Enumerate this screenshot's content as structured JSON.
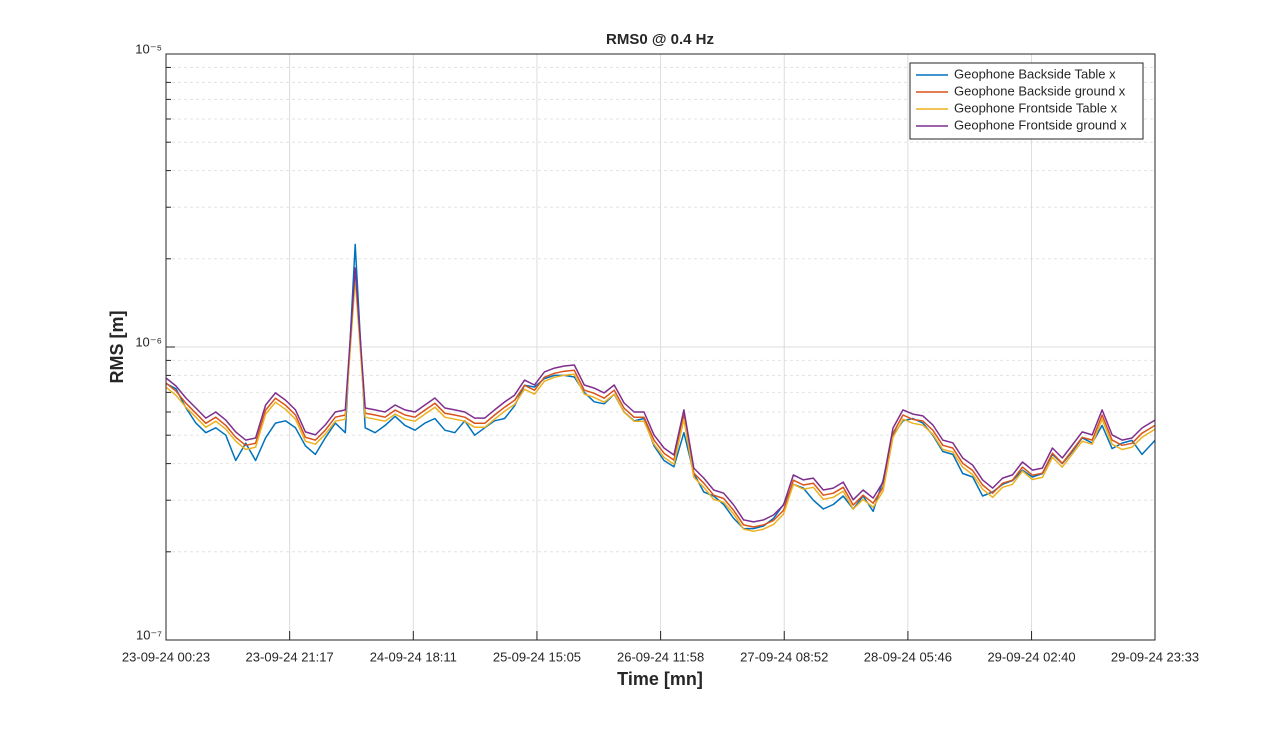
{
  "chart_data": {
    "type": "line",
    "title": "RMS0 @ 0.4 Hz",
    "xlabel": "Time [mn]",
    "ylabel": "RMS [m]",
    "log_y": true,
    "grid": true,
    "minor_grid": true,
    "legend_position": "upper right",
    "xlim": [
      0,
      10030
    ],
    "ylim": [
      1e-07,
      1e-05
    ],
    "xticks": [
      {
        "value": 0,
        "label": "23-09-24 00:23"
      },
      {
        "value": 1254,
        "label": "23-09-24 21:17"
      },
      {
        "value": 2508,
        "label": "24-09-24 18:11"
      },
      {
        "value": 3762,
        "label": "25-09-24 15:05"
      },
      {
        "value": 5016,
        "label": "26-09-24 11:58"
      },
      {
        "value": 6270,
        "label": "27-09-24 08:52"
      },
      {
        "value": 7524,
        "label": "28-09-24 05:46"
      },
      {
        "value": 8778,
        "label": "29-09-24 02:40"
      },
      {
        "value": 10030,
        "label": "29-09-24 23:33"
      }
    ],
    "yticks": [
      {
        "value": 1e-07,
        "label": "10⁻⁷"
      },
      {
        "value": 1e-06,
        "label": "10⁻⁶"
      },
      {
        "value": 1e-05,
        "label": "10⁻⁵"
      }
    ],
    "minor_yticks": [
      2e-07,
      3e-07,
      4e-07,
      5e-07,
      6e-07,
      7e-07,
      8e-07,
      9e-07,
      2e-06,
      3e-06,
      4e-06,
      5e-06,
      6e-06,
      7e-06,
      8e-06,
      9e-06
    ],
    "x": [
      0,
      101,
      202,
      303,
      404,
      505,
      606,
      707,
      808,
      909,
      1010,
      1111,
      1212,
      1313,
      1414,
      1515,
      1616,
      1717,
      1818,
      1919,
      2020,
      2121,
      2222,
      2323,
      2424,
      2525,
      2626,
      2727,
      2828,
      2929,
      3030,
      3131,
      3232,
      3333,
      3434,
      3535,
      3636,
      3737,
      3838,
      3939,
      4040,
      4141,
      4242,
      4343,
      4444,
      4545,
      4646,
      4747,
      4848,
      4949,
      5050,
      5151,
      5252,
      5353,
      5454,
      5555,
      5656,
      5757,
      5858,
      5959,
      6060,
      6161,
      6262,
      6363,
      6464,
      6565,
      6666,
      6767,
      6868,
      6969,
      7070,
      7171,
      7272,
      7373,
      7474,
      7575,
      7676,
      7777,
      7878,
      7979,
      8080,
      8181,
      8282,
      8383,
      8484,
      8585,
      8686,
      8787,
      8888,
      8989,
      9090,
      9191,
      9292,
      9393,
      9494,
      9595,
      9696,
      9797,
      9898,
      10030
    ],
    "series": [
      {
        "name": "Geophone Backside Table x",
        "color": "#0072BD",
        "values": [
          7.5e-07,
          7.2e-07,
          6.2e-07,
          5.5e-07,
          5.1e-07,
          5.3e-07,
          5e-07,
          4.1e-07,
          4.7e-07,
          4.1e-07,
          4.9e-07,
          5.5e-07,
          5.6e-07,
          5.3e-07,
          4.6e-07,
          4.3e-07,
          4.9e-07,
          5.5e-07,
          5.1e-07,
          2.24e-06,
          5.3e-07,
          5.1e-07,
          5.4e-07,
          5.8e-07,
          5.4e-07,
          5.2e-07,
          5.5e-07,
          5.7e-07,
          5.2e-07,
          5.1e-07,
          5.6e-07,
          5e-07,
          5.3e-07,
          5.6e-07,
          5.7e-07,
          6.3e-07,
          7.4e-07,
          7.3e-07,
          7.8e-07,
          8e-07,
          8e-07,
          7.9e-07,
          7e-07,
          6.5e-07,
          6.4e-07,
          6.9e-07,
          6e-07,
          5.6e-07,
          5.7e-07,
          4.6e-07,
          4.1e-07,
          3.9e-07,
          5.1e-07,
          3.7e-07,
          3.2e-07,
          3.1e-07,
          2.9e-07,
          2.6e-07,
          2.4e-07,
          2.4e-07,
          2.45e-07,
          2.6e-07,
          2.9e-07,
          3.4e-07,
          3.3e-07,
          3e-07,
          2.8e-07,
          2.9e-07,
          3.1e-07,
          2.8e-07,
          3.1e-07,
          2.75e-07,
          3.5e-07,
          5e-07,
          5.6e-07,
          5.7e-07,
          5.5e-07,
          5e-07,
          4.4e-07,
          4.3e-07,
          3.7e-07,
          3.6e-07,
          3.1e-07,
          3.2e-07,
          3.4e-07,
          3.5e-07,
          3.8e-07,
          3.6e-07,
          3.7e-07,
          4.3e-07,
          4e-07,
          4.4e-07,
          4.9e-07,
          4.7e-07,
          5.4e-07,
          4.5e-07,
          4.7e-07,
          4.8e-07,
          4.3e-07,
          4.8e-07
        ]
      },
      {
        "name": "Geophone Backside ground x",
        "color": "#D95319",
        "values": [
          7.53e-07,
          7.07e-07,
          6.43e-07,
          5.94e-07,
          5.49e-07,
          5.76e-07,
          5.4e-07,
          4.92e-07,
          4.62e-07,
          4.69e-07,
          6.09e-07,
          6.69e-07,
          6.33e-07,
          5.86e-07,
          4.92e-07,
          4.81e-07,
          5.2e-07,
          5.76e-07,
          5.86e-07,
          1.75e-06,
          5.94e-07,
          5.86e-07,
          5.76e-07,
          6.09e-07,
          5.86e-07,
          5.76e-07,
          6.09e-07,
          6.43e-07,
          5.94e-07,
          5.86e-07,
          5.76e-07,
          5.49e-07,
          5.49e-07,
          5.86e-07,
          6.23e-07,
          6.58e-07,
          7.4e-07,
          7.12e-07,
          7.89e-07,
          8.13e-07,
          8.27e-07,
          8.33e-07,
          7.12e-07,
          6.95e-07,
          6.69e-07,
          7.12e-07,
          6.18e-07,
          5.76e-07,
          5.76e-07,
          4.81e-07,
          4.34e-07,
          4.11e-07,
          5.86e-07,
          3.71e-07,
          3.43e-07,
          3.12e-07,
          3.04e-07,
          2.77e-07,
          2.47e-07,
          2.43e-07,
          2.47e-07,
          2.56e-07,
          2.77e-07,
          3.51e-07,
          3.38e-07,
          3.43e-07,
          3.12e-07,
          3.17e-07,
          3.32e-07,
          2.89e-07,
          3.12e-07,
          2.93e-07,
          3.32e-07,
          5.08e-07,
          5.86e-07,
          5.66e-07,
          5.59e-07,
          5.2e-07,
          4.62e-07,
          4.52e-07,
          4.01e-07,
          3.79e-07,
          3.38e-07,
          3.17e-07,
          3.43e-07,
          3.51e-07,
          3.89e-07,
          3.65e-07,
          3.71e-07,
          4.34e-07,
          4.01e-07,
          4.44e-07,
          4.92e-07,
          4.81e-07,
          5.86e-07,
          4.81e-07,
          4.62e-07,
          4.69e-07,
          5.08e-07,
          5.4e-07
        ]
      },
      {
        "name": "Geophone Frontside Table x",
        "color": "#EDB120",
        "values": [
          7.29e-07,
          6.84e-07,
          6.23e-07,
          5.76e-07,
          5.32e-07,
          5.58e-07,
          5.24e-07,
          4.77e-07,
          4.47e-07,
          4.55e-07,
          5.9e-07,
          6.48e-07,
          6.13e-07,
          5.67e-07,
          4.77e-07,
          4.66e-07,
          5.04e-07,
          5.58e-07,
          5.67e-07,
          1.7e-06,
          5.76e-07,
          5.67e-07,
          5.58e-07,
          5.9e-07,
          5.67e-07,
          5.58e-07,
          5.9e-07,
          6.23e-07,
          5.76e-07,
          5.67e-07,
          5.58e-07,
          5.32e-07,
          5.32e-07,
          5.67e-07,
          6.04e-07,
          6.37e-07,
          7.17e-07,
          6.9e-07,
          7.64e-07,
          7.88e-07,
          8.01e-07,
          8.07e-07,
          6.9e-07,
          6.73e-07,
          6.48e-07,
          6.9e-07,
          5.99e-07,
          5.58e-07,
          5.58e-07,
          4.66e-07,
          4.2e-07,
          3.98e-07,
          5.67e-07,
          3.59e-07,
          3.32e-07,
          3.02e-07,
          2.95e-07,
          2.69e-07,
          2.39e-07,
          2.35e-07,
          2.39e-07,
          2.48e-07,
          2.69e-07,
          3.4e-07,
          3.27e-07,
          3.32e-07,
          3.02e-07,
          3.07e-07,
          3.22e-07,
          2.8e-07,
          3.02e-07,
          2.84e-07,
          3.22e-07,
          4.92e-07,
          5.67e-07,
          5.49e-07,
          5.41e-07,
          5.04e-07,
          4.47e-07,
          4.38e-07,
          3.89e-07,
          3.67e-07,
          3.27e-07,
          3.07e-07,
          3.32e-07,
          3.4e-07,
          3.77e-07,
          3.53e-07,
          3.59e-07,
          4.2e-07,
          3.89e-07,
          4.31e-07,
          4.77e-07,
          4.66e-07,
          5.67e-07,
          4.66e-07,
          4.47e-07,
          4.55e-07,
          4.92e-07,
          5.24e-07
        ]
      },
      {
        "name": "Geophone Frontside ground x",
        "color": "#7E2F8E",
        "values": [
          7.84e-07,
          7.36e-07,
          6.7e-07,
          6.19e-07,
          5.72e-07,
          6e-07,
          5.63e-07,
          5.13e-07,
          4.81e-07,
          4.89e-07,
          6.34e-07,
          6.97e-07,
          6.59e-07,
          6.1e-07,
          5.13e-07,
          5.01e-07,
          5.42e-07,
          6e-07,
          6.1e-07,
          1.86e-06,
          6.19e-07,
          6.1e-07,
          6e-07,
          6.34e-07,
          6.1e-07,
          6e-07,
          6.34e-07,
          6.7e-07,
          6.19e-07,
          6.1e-07,
          6e-07,
          5.72e-07,
          5.72e-07,
          6.1e-07,
          6.49e-07,
          6.85e-07,
          7.71e-07,
          7.42e-07,
          8.22e-07,
          8.47e-07,
          8.61e-07,
          8.68e-07,
          7.42e-07,
          7.24e-07,
          6.97e-07,
          7.42e-07,
          6.44e-07,
          6e-07,
          6e-07,
          5.01e-07,
          4.52e-07,
          4.28e-07,
          6.1e-07,
          3.86e-07,
          3.57e-07,
          3.25e-07,
          3.17e-07,
          2.89e-07,
          2.57e-07,
          2.53e-07,
          2.57e-07,
          2.67e-07,
          2.89e-07,
          3.66e-07,
          3.52e-07,
          3.57e-07,
          3.25e-07,
          3.3e-07,
          3.46e-07,
          3.01e-07,
          3.25e-07,
          3.05e-07,
          3.46e-07,
          5.29e-07,
          6.1e-07,
          5.9e-07,
          5.82e-07,
          5.42e-07,
          4.81e-07,
          4.71e-07,
          4.18e-07,
          3.95e-07,
          3.52e-07,
          3.3e-07,
          3.57e-07,
          3.66e-07,
          4.05e-07,
          3.8e-07,
          3.86e-07,
          4.52e-07,
          4.18e-07,
          4.63e-07,
          5.13e-07,
          5.01e-07,
          6.1e-07,
          5.01e-07,
          4.81e-07,
          4.89e-07,
          5.29e-07,
          5.63e-07
        ]
      }
    ]
  }
}
